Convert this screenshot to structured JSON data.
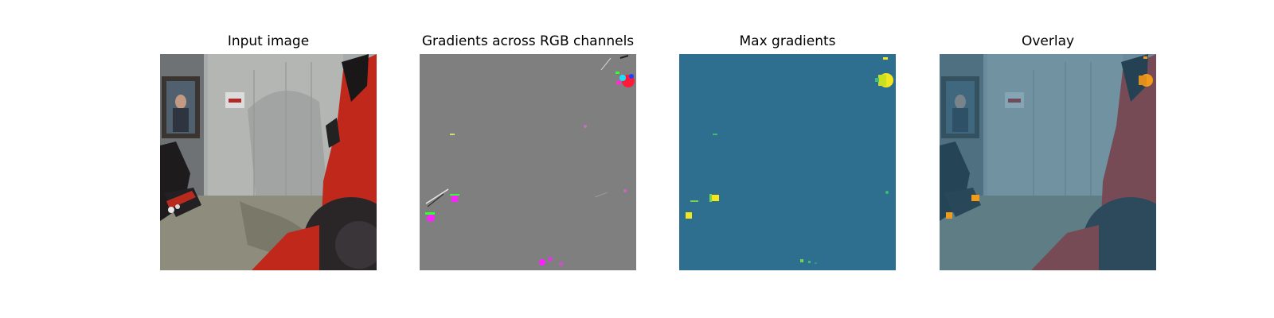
{
  "figure": {
    "panels": [
      {
        "title": "Input image"
      },
      {
        "title": "Gradients across RGB channels"
      },
      {
        "title": "Max gradients"
      },
      {
        "title": "Overlay"
      }
    ]
  },
  "colors": {
    "gradient_background": "#7f7f7f",
    "max_gradient_background": "#2e6e8e",
    "robot_red": "#c0281c",
    "highlight_yellow": "#f3e51e",
    "highlight_magenta": "#e020e0"
  }
}
